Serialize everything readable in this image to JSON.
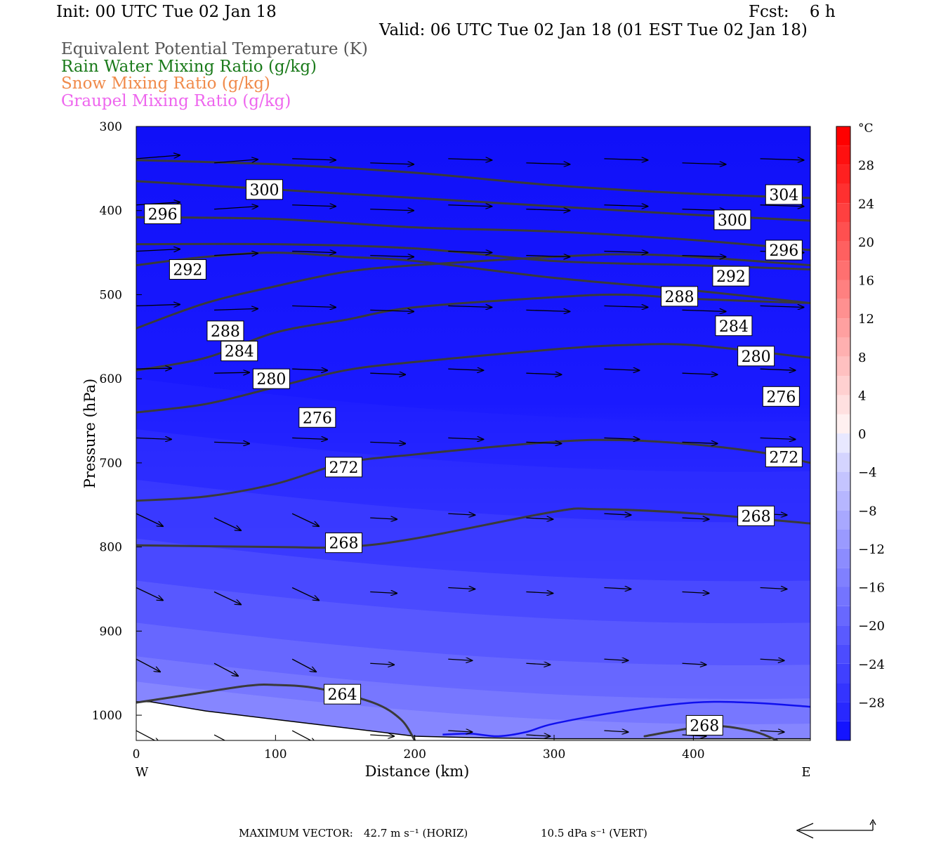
{
  "header": {
    "init": "Init: 00 UTC Tue 02 Jan 18",
    "fcst": "Fcst:    6 h",
    "valid": "Valid: 06 UTC Tue 02 Jan 18 (01 EST Tue 02 Jan 18)"
  },
  "legend": [
    {
      "label": "Equivalent Potential Temperature (K)",
      "color": "#555555"
    },
    {
      "label": "Rain Water Mixing Ratio (g/kg)",
      "color": "#1a7a1a"
    },
    {
      "label": "Snow Mixing Ratio (g/kg)",
      "color": "#f08a4a"
    },
    {
      "label": "Graupel Mixing Ratio (g/kg)",
      "color": "#ee66ee"
    }
  ],
  "footer": {
    "max_vector_label": "MAXIMUM VECTOR:",
    "horiz": "42.7 m s⁻¹ (HORIZ)",
    "vert": "10.5 dPa s⁻¹ (VERT)"
  },
  "chart_data": {
    "type": "heatmap",
    "title": "",
    "xlabel": "Distance (km)",
    "ylabel": "Pressure (hPa)",
    "xlim": [
      0,
      484
    ],
    "ylim": [
      1030,
      300
    ],
    "x_ticks": [
      0,
      100,
      200,
      300,
      400
    ],
    "y_ticks": [
      300,
      400,
      500,
      600,
      700,
      800,
      900,
      1000
    ],
    "x_end_labels": {
      "left": "W",
      "right": "E"
    },
    "colorbar": {
      "unit": "°C",
      "ticks": [
        28,
        24,
        20,
        16,
        12,
        8,
        4,
        0,
        -4,
        -8,
        -12,
        -16,
        -20,
        -24,
        -28
      ],
      "levels": [
        -32,
        -30,
        -28,
        -26,
        -24,
        -22,
        -20,
        -18,
        -16,
        -14,
        -12,
        -10,
        -8,
        -6,
        -4,
        -2,
        0,
        2,
        4,
        6,
        8,
        10,
        12,
        14,
        16,
        18,
        20,
        22,
        24,
        26,
        28,
        30,
        32
      ],
      "colors": [
        "#1414ff",
        "#2828ff",
        "#3434ff",
        "#4040ff",
        "#4c4cff",
        "#5a5aff",
        "#6868ff",
        "#7474ff",
        "#8080ff",
        "#8c8cff",
        "#9a9aff",
        "#a8a8ff",
        "#b6b6ff",
        "#c4c4ff",
        "#d4d4ff",
        "#e8e8ff",
        "#fff0f0",
        "#ffe0e0",
        "#ffd0d0",
        "#ffc0c0",
        "#ffb0b0",
        "#ffa0a0",
        "#ff9090",
        "#ff8080",
        "#ff7070",
        "#ff6060",
        "#ff5050",
        "#ff4040",
        "#ff3030",
        "#ff2020",
        "#ff1010",
        "#ff0000"
      ]
    },
    "theta_e_contours": [
      {
        "value": 264,
        "points": [
          [
            0,
            985
          ],
          [
            40,
            975
          ],
          [
            80,
            965
          ],
          [
            100,
            964
          ],
          [
            130,
            968
          ],
          [
            170,
            985
          ],
          [
            190,
            1005
          ],
          [
            200,
            1030
          ]
        ],
        "labels": [
          [
            148,
            975
          ]
        ]
      },
      {
        "value": 268,
        "points": [
          [
            0,
            798
          ],
          [
            100,
            800
          ],
          [
            150,
            800
          ],
          [
            200,
            790
          ],
          [
            300,
            758
          ],
          [
            330,
            755
          ],
          [
            400,
            760
          ],
          [
            484,
            772
          ]
        ],
        "labels": [
          [
            149,
            795
          ],
          [
            445,
            763
          ]
        ]
      },
      {
        "value": 268,
        "points": [
          [
            365,
            1025
          ],
          [
            400,
            1015
          ],
          [
            420,
            1013
          ],
          [
            445,
            1020
          ],
          [
            460,
            1030
          ]
        ],
        "labels": [
          [
            408,
            1012
          ]
        ]
      },
      {
        "value": 272,
        "points": [
          [
            0,
            745
          ],
          [
            50,
            740
          ],
          [
            100,
            725
          ],
          [
            150,
            700
          ],
          [
            200,
            690
          ],
          [
            300,
            675
          ],
          [
            350,
            673
          ],
          [
            400,
            678
          ],
          [
            450,
            688
          ],
          [
            484,
            700
          ]
        ],
        "labels": [
          [
            149,
            705
          ],
          [
            465,
            693
          ]
        ]
      },
      {
        "value": 276,
        "points": [
          [
            0,
            640
          ],
          [
            50,
            630
          ],
          [
            100,
            610
          ],
          [
            150,
            590
          ],
          [
            200,
            580
          ],
          [
            300,
            565
          ],
          [
            350,
            560
          ],
          [
            400,
            560
          ],
          [
            484,
            575
          ]
        ],
        "labels": [
          [
            130,
            646
          ],
          [
            463,
            621
          ]
        ]
      },
      {
        "value": 280,
        "points": [
          [
            0,
            590
          ],
          [
            50,
            575
          ],
          [
            100,
            545
          ],
          [
            150,
            530
          ],
          [
            200,
            515
          ],
          [
            300,
            503
          ],
          [
            350,
            500
          ],
          [
            400,
            505
          ],
          [
            484,
            510
          ]
        ],
        "labels": [
          [
            97,
            600
          ],
          [
            445,
            573
          ]
        ]
      },
      {
        "value": 284,
        "points": [
          [
            0,
            540
          ],
          [
            50,
            510
          ],
          [
            100,
            490
          ],
          [
            150,
            473
          ],
          [
            200,
            465
          ],
          [
            300,
            455
          ],
          [
            350,
            452
          ],
          [
            400,
            455
          ],
          [
            484,
            465
          ]
        ],
        "labels": [
          [
            74,
            567
          ],
          [
            429,
            537
          ]
        ]
      },
      {
        "value": 288,
        "points": [
          [
            0,
            465
          ],
          [
            50,
            455
          ],
          [
            100,
            450
          ],
          [
            150,
            455
          ],
          [
            200,
            460
          ],
          [
            300,
            480
          ],
          [
            400,
            495
          ],
          [
            484,
            510
          ]
        ],
        "labels": [
          [
            64,
            543
          ],
          [
            390,
            502
          ]
        ]
      },
      {
        "value": 292,
        "points": [
          [
            0,
            440
          ],
          [
            100,
            440
          ],
          [
            200,
            445
          ],
          [
            300,
            460
          ],
          [
            400,
            465
          ],
          [
            484,
            470
          ]
        ],
        "labels": [
          [
            37,
            470
          ],
          [
            427,
            478
          ]
        ]
      },
      {
        "value": 296,
        "points": [
          [
            0,
            408
          ],
          [
            100,
            410
          ],
          [
            200,
            420
          ],
          [
            300,
            425
          ],
          [
            400,
            435
          ],
          [
            484,
            447
          ]
        ],
        "labels": [
          [
            19,
            404
          ],
          [
            465,
            447
          ]
        ]
      },
      {
        "value": 300,
        "points": [
          [
            0,
            365
          ],
          [
            100,
            375
          ],
          [
            200,
            385
          ],
          [
            300,
            395
          ],
          [
            400,
            405
          ],
          [
            484,
            412
          ]
        ],
        "labels": [
          [
            92,
            375
          ],
          [
            428,
            411
          ]
        ]
      },
      {
        "value": 304,
        "points": [
          [
            0,
            340
          ],
          [
            100,
            345
          ],
          [
            200,
            355
          ],
          [
            300,
            370
          ],
          [
            400,
            380
          ],
          [
            484,
            385
          ]
        ],
        "labels": [
          [
            465,
            381
          ]
        ]
      }
    ],
    "rain_contour_points": [
      [
        220,
        1023
      ],
      [
        240,
        1022
      ],
      [
        260,
        1025
      ],
      [
        280,
        1020
      ],
      [
        300,
        1010
      ],
      [
        350,
        995
      ],
      [
        400,
        985
      ],
      [
        440,
        985
      ],
      [
        484,
        990
      ]
    ],
    "terrain_surface": [
      [
        0,
        984
      ],
      [
        10,
        984
      ],
      [
        50,
        995
      ],
      [
        100,
        1005
      ],
      [
        150,
        1015
      ],
      [
        200,
        1025
      ],
      [
        250,
        1027
      ],
      [
        300,
        1028
      ],
      [
        400,
        1028
      ],
      [
        484,
        1028
      ]
    ]
  }
}
